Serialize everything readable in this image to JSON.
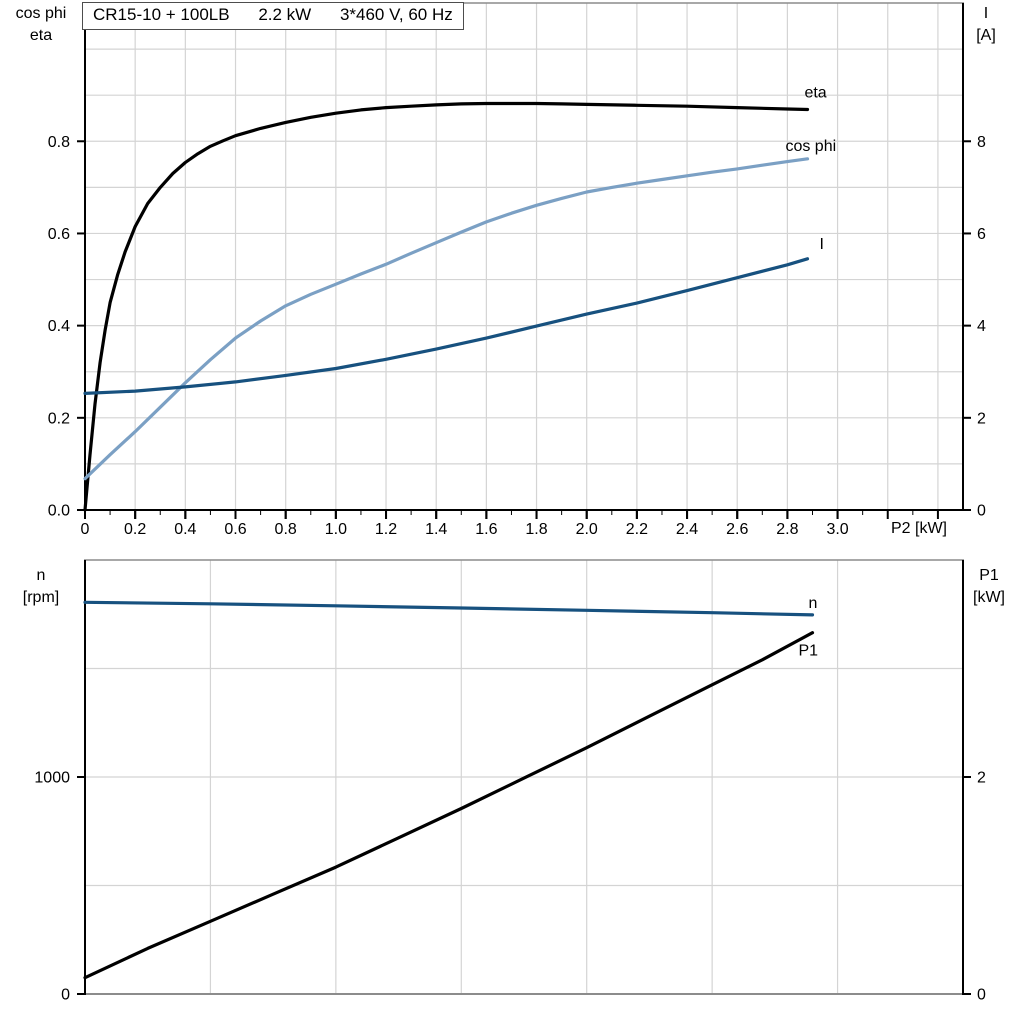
{
  "title": {
    "pump_model": "CR15-10 + 100LB",
    "power": "2.2 kW",
    "supply": "3*460 V, 60 Hz"
  },
  "colors": {
    "black": "#000000",
    "navy": "#17517F",
    "light_blue": "#7BA0C4",
    "grid": "#d4d4d4",
    "frame": "#8c8c8c",
    "axis": "#000000"
  },
  "chart_data": [
    {
      "type": "line",
      "name": "eta-cosphi-current-vs-p2",
      "x_axis": {
        "label": "P2 [kW]",
        "range": [
          0,
          3.5
        ],
        "grid_step": 0.2,
        "minor_tick_step": 0.1,
        "ticks": [
          {
            "v": 0,
            "label": "0"
          },
          {
            "v": 0.2,
            "label": "0.2"
          },
          {
            "v": 0.4,
            "label": "0.4"
          },
          {
            "v": 0.6,
            "label": "0.6"
          },
          {
            "v": 0.8,
            "label": "0.8"
          },
          {
            "v": 1.0,
            "label": "1.0"
          },
          {
            "v": 1.2,
            "label": "1.2"
          },
          {
            "v": 1.4,
            "label": "1.4"
          },
          {
            "v": 1.6,
            "label": "1.6"
          },
          {
            "v": 1.8,
            "label": "1.8"
          },
          {
            "v": 2.0,
            "label": "2.0"
          },
          {
            "v": 2.2,
            "label": "2.2"
          },
          {
            "v": 2.4,
            "label": "2.4"
          },
          {
            "v": 2.6,
            "label": "2.6"
          },
          {
            "v": 2.8,
            "label": "2.8"
          },
          {
            "v": 3.0,
            "label": "3.0"
          }
        ]
      },
      "left_axis": {
        "title_line1": "cos phi",
        "title_line2": "eta",
        "range": [
          0,
          1.1
        ],
        "grid_step": 0.1,
        "ticks": [
          {
            "v": 0.0,
            "label": "0.0"
          },
          {
            "v": 0.2,
            "label": "0.2"
          },
          {
            "v": 0.4,
            "label": "0.4"
          },
          {
            "v": 0.6,
            "label": "0.6"
          },
          {
            "v": 0.8,
            "label": "0.8"
          }
        ]
      },
      "right_axis": {
        "title_line1": "I",
        "title_line2": "[A]",
        "range": [
          0,
          11
        ],
        "ticks": [
          {
            "v": 0,
            "label": "0"
          },
          {
            "v": 2,
            "label": "2"
          },
          {
            "v": 4,
            "label": "4"
          },
          {
            "v": 6,
            "label": "6"
          },
          {
            "v": 8,
            "label": "8"
          }
        ]
      },
      "series": [
        {
          "name": "eta",
          "label": "eta",
          "axis": "left",
          "color_key": "black",
          "points": [
            [
              0,
              0
            ],
            [
              0.02,
              0.12
            ],
            [
              0.04,
              0.23
            ],
            [
              0.06,
              0.32
            ],
            [
              0.08,
              0.39
            ],
            [
              0.1,
              0.45
            ],
            [
              0.13,
              0.51
            ],
            [
              0.16,
              0.56
            ],
            [
              0.2,
              0.615
            ],
            [
              0.25,
              0.665
            ],
            [
              0.3,
              0.7
            ],
            [
              0.35,
              0.73
            ],
            [
              0.4,
              0.754
            ],
            [
              0.45,
              0.773
            ],
            [
              0.5,
              0.789
            ],
            [
              0.55,
              0.801
            ],
            [
              0.6,
              0.812
            ],
            [
              0.7,
              0.828
            ],
            [
              0.8,
              0.841
            ],
            [
              0.9,
              0.852
            ],
            [
              1.0,
              0.861
            ],
            [
              1.1,
              0.868
            ],
            [
              1.2,
              0.873
            ],
            [
              1.3,
              0.876
            ],
            [
              1.4,
              0.879
            ],
            [
              1.5,
              0.881
            ],
            [
              1.6,
              0.882
            ],
            [
              1.7,
              0.882
            ],
            [
              1.8,
              0.882
            ],
            [
              1.9,
              0.881
            ],
            [
              2.0,
              0.88
            ],
            [
              2.2,
              0.878
            ],
            [
              2.4,
              0.876
            ],
            [
              2.6,
              0.873
            ],
            [
              2.8,
              0.87
            ],
            [
              2.88,
              0.869
            ]
          ]
        },
        {
          "name": "cos-phi",
          "label": "cos phi",
          "axis": "left",
          "color_key": "light_blue",
          "points": [
            [
              0,
              0.068
            ],
            [
              0.1,
              0.12
            ],
            [
              0.2,
              0.17
            ],
            [
              0.3,
              0.223
            ],
            [
              0.4,
              0.276
            ],
            [
              0.5,
              0.326
            ],
            [
              0.6,
              0.373
            ],
            [
              0.7,
              0.41
            ],
            [
              0.8,
              0.443
            ],
            [
              0.9,
              0.468
            ],
            [
              1.0,
              0.49
            ],
            [
              1.1,
              0.512
            ],
            [
              1.2,
              0.533
            ],
            [
              1.3,
              0.557
            ],
            [
              1.4,
              0.58
            ],
            [
              1.5,
              0.603
            ],
            [
              1.6,
              0.625
            ],
            [
              1.7,
              0.644
            ],
            [
              1.8,
              0.661
            ],
            [
              1.9,
              0.676
            ],
            [
              2.0,
              0.69
            ],
            [
              2.1,
              0.7
            ],
            [
              2.2,
              0.709
            ],
            [
              2.3,
              0.717
            ],
            [
              2.4,
              0.725
            ],
            [
              2.5,
              0.733
            ],
            [
              2.6,
              0.74
            ],
            [
              2.7,
              0.748
            ],
            [
              2.8,
              0.756
            ],
            [
              2.88,
              0.762
            ]
          ]
        },
        {
          "name": "current",
          "label": "I",
          "axis": "right",
          "color_key": "navy",
          "points": [
            [
              0,
              2.53
            ],
            [
              0.2,
              2.58
            ],
            [
              0.4,
              2.67
            ],
            [
              0.6,
              2.78
            ],
            [
              0.8,
              2.92
            ],
            [
              1.0,
              3.07
            ],
            [
              1.2,
              3.27
            ],
            [
              1.4,
              3.49
            ],
            [
              1.6,
              3.73
            ],
            [
              1.8,
              3.99
            ],
            [
              2.0,
              4.25
            ],
            [
              2.2,
              4.49
            ],
            [
              2.4,
              4.76
            ],
            [
              2.6,
              5.04
            ],
            [
              2.8,
              5.32
            ],
            [
              2.88,
              5.45
            ]
          ]
        }
      ]
    },
    {
      "type": "line",
      "name": "speed-p1-vs-p2",
      "x_axis": {
        "label": "",
        "range": [
          0,
          3.5
        ],
        "grid_step": 0.5,
        "minor_tick_step": 0,
        "ticks": []
      },
      "left_axis": {
        "title_line1": "n",
        "title_line2": "[rpm]",
        "range": [
          0,
          2000
        ],
        "grid_step": 500,
        "ticks": [
          {
            "v": 0,
            "label": "0"
          },
          {
            "v": 1000,
            "label": "1000"
          }
        ]
      },
      "right_axis": {
        "title_line1": "P1",
        "title_line2": "[kW]",
        "range": [
          0,
          4
        ],
        "ticks": [
          {
            "v": 0,
            "label": "0"
          },
          {
            "v": 2,
            "label": "2"
          }
        ]
      },
      "series": [
        {
          "name": "speed",
          "label": "n",
          "axis": "left",
          "color_key": "navy",
          "points": [
            [
              0,
              1805
            ],
            [
              0.5,
              1798
            ],
            [
              1.0,
              1789
            ],
            [
              1.5,
              1779
            ],
            [
              2.0,
              1768
            ],
            [
              2.5,
              1757
            ],
            [
              2.9,
              1747
            ]
          ]
        },
        {
          "name": "input-power",
          "label": "P1",
          "axis": "right",
          "color_key": "black",
          "points": [
            [
              0,
              0.15
            ],
            [
              0.25,
              0.42
            ],
            [
              0.5,
              0.67
            ],
            [
              0.75,
              0.92
            ],
            [
              1.0,
              1.17
            ],
            [
              1.25,
              1.44
            ],
            [
              1.5,
              1.71
            ],
            [
              1.75,
              1.99
            ],
            [
              2.0,
              2.27
            ],
            [
              2.25,
              2.56
            ],
            [
              2.5,
              2.85
            ],
            [
              2.7,
              3.08
            ],
            [
              2.9,
              3.33
            ]
          ]
        }
      ]
    }
  ]
}
